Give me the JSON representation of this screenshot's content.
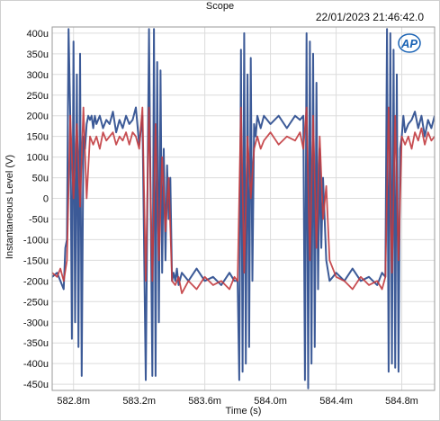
{
  "window": {
    "title": "Scope",
    "timestamp": "22/01/2023 21:46:42.0",
    "logo_text": "AP"
  },
  "colors": {
    "series_blue": "#3c5a97",
    "series_red": "#c23b3f",
    "grid": "#dcdcdc",
    "axis": "#9a9a9a",
    "logo": "#1a63b5"
  },
  "chart_data": {
    "type": "line",
    "title": "Scope",
    "xlabel": "Time (s)",
    "ylabel": "Instantaneous Level (V)",
    "xlim": [
      582.67,
      585.0
    ],
    "ylim": [
      -0.000465,
      0.000415
    ],
    "x_ticks": [
      582.8,
      583.2,
      583.6,
      584.0,
      584.4,
      584.8
    ],
    "x_tick_labels": [
      "582.8m",
      "583.2m",
      "583.6m",
      "584.0m",
      "584.4m",
      "584.8m"
    ],
    "y_ticks": [
      0.0004,
      0.00035,
      0.0003,
      0.00025,
      0.0002,
      0.00015,
      0.0001,
      5e-05,
      0,
      -5e-05,
      -0.0001,
      -0.00015,
      -0.0002,
      -0.00025,
      -0.0003,
      -0.00035,
      -0.0004,
      -0.00045
    ],
    "y_tick_labels": [
      "400u",
      "350u",
      "300u",
      "250u",
      "200u",
      "150u",
      "100u",
      "50u",
      "0",
      "-50u",
      "-100u",
      "-150u",
      "-200u",
      "-250u",
      "-300u",
      "-350u",
      "-400u",
      "-450u"
    ],
    "grid": true,
    "legend": "none",
    "series": [
      {
        "color": "#3c5a97",
        "x": [
          582.67,
          582.7,
          582.72,
          582.74,
          582.75,
          582.76,
          582.77,
          582.78,
          582.79,
          582.8,
          582.81,
          582.82,
          582.83,
          582.84,
          582.85,
          582.86,
          582.87,
          582.88,
          582.89,
          582.9,
          582.91,
          582.92,
          582.93,
          582.94,
          582.96,
          582.98,
          583.0,
          583.02,
          583.04,
          583.06,
          583.08,
          583.1,
          583.12,
          583.14,
          583.16,
          583.18,
          583.2,
          583.22,
          583.24,
          583.26,
          583.28,
          583.29,
          583.3,
          583.31,
          583.32,
          583.33,
          583.34,
          583.35,
          583.36,
          583.37,
          583.38,
          583.39,
          583.4,
          583.41,
          583.42,
          583.43,
          583.44,
          583.46,
          583.5,
          583.55,
          583.6,
          583.65,
          583.7,
          583.75,
          583.78,
          583.8,
          583.81,
          583.82,
          583.83,
          583.84,
          583.85,
          583.86,
          583.87,
          583.88,
          583.89,
          583.9,
          583.91,
          583.92,
          583.94,
          583.96,
          584.0,
          584.05,
          584.1,
          584.15,
          584.18,
          584.2,
          584.21,
          584.22,
          584.23,
          584.24,
          584.25,
          584.26,
          584.27,
          584.28,
          584.29,
          584.3,
          584.31,
          584.32,
          584.34,
          584.36,
          584.4,
          584.45,
          584.5,
          584.55,
          584.6,
          584.65,
          584.68,
          584.7,
          584.71,
          584.72,
          584.73,
          584.74,
          584.75,
          584.76,
          584.77,
          584.78,
          584.79,
          584.8,
          584.81,
          584.82,
          584.84,
          584.86,
          584.88,
          584.9,
          584.92,
          584.94,
          584.96,
          584.98,
          585.0
        ],
        "values": [
          -0.00019,
          -0.00018,
          -0.0002,
          -0.00022,
          -0.00012,
          -0.0001,
          0.00041,
          0.0002,
          -0.00034,
          0.00038,
          -0.0003,
          0.0003,
          -0.00036,
          0.00035,
          -0.00043,
          0.00015,
          0.00012,
          0.00018,
          0.0002,
          0.00019,
          0.0002,
          0.00017,
          0.0002,
          0.00018,
          0.0002,
          0.00017,
          0.00019,
          0.00018,
          0.00021,
          0.00016,
          0.00019,
          0.00017,
          0.0002,
          0.00018,
          0.00019,
          0.00022,
          0.00013,
          0.0002,
          -0.00044,
          0.00041,
          -0.00043,
          0.00041,
          -0.00043,
          0.00033,
          -0.0003,
          0.00031,
          -0.00018,
          0.00012,
          -0.00015,
          8e-05,
          -5e-05,
          5e-05,
          -0.0002,
          -0.00018,
          -0.0002,
          -0.00017,
          -0.00021,
          -0.00018,
          -0.0002,
          -0.00017,
          -0.0002,
          -0.00019,
          -0.00021,
          -0.00018,
          -0.0002,
          -0.0002,
          -0.00044,
          0.00036,
          -0.00042,
          0.0004,
          -0.0004,
          0.0003,
          -0.00036,
          0.00034,
          -0.0002,
          0.00018,
          0.00015,
          0.0002,
          0.00017,
          0.0002,
          0.00018,
          0.0002,
          0.00017,
          0.0002,
          0.00019,
          0.0002,
          -0.00044,
          0.0004,
          -0.00046,
          0.00038,
          -0.0004,
          0.00035,
          -0.00036,
          0.00028,
          -0.00022,
          0.00012,
          -0.00012,
          5e-05,
          -0.00015,
          -0.0002,
          -0.00018,
          -0.0002,
          -0.00017,
          -0.0002,
          -0.00019,
          -0.00021,
          -0.00018,
          -0.00019,
          0.00041,
          -0.00042,
          0.0004,
          -0.0004,
          0.00036,
          -0.00041,
          0.0003,
          -0.00042,
          0.00012,
          0.00015,
          0.0002,
          0.00016,
          0.00018,
          0.00019,
          0.00021,
          0.00017,
          0.0002,
          0.00015,
          0.00019,
          0.00017,
          0.0002
        ]
      },
      {
        "color": "#c23b3f",
        "x": [
          582.67,
          582.7,
          582.72,
          582.74,
          582.76,
          582.78,
          582.8,
          582.82,
          582.84,
          582.86,
          582.88,
          582.9,
          582.92,
          582.94,
          582.96,
          582.98,
          583.0,
          583.02,
          583.04,
          583.06,
          583.08,
          583.1,
          583.12,
          583.14,
          583.16,
          583.18,
          583.2,
          583.22,
          583.24,
          583.26,
          583.28,
          583.3,
          583.32,
          583.34,
          583.36,
          583.38,
          583.4,
          583.42,
          583.44,
          583.46,
          583.5,
          583.55,
          583.6,
          583.65,
          583.7,
          583.75,
          583.78,
          583.8,
          583.82,
          583.84,
          583.86,
          583.88,
          583.9,
          583.92,
          583.94,
          583.96,
          584.0,
          584.05,
          584.1,
          584.15,
          584.18,
          584.2,
          584.22,
          584.24,
          584.26,
          584.28,
          584.3,
          584.32,
          584.34,
          584.36,
          584.4,
          584.45,
          584.5,
          584.55,
          584.6,
          584.65,
          584.68,
          584.7,
          584.72,
          584.74,
          584.76,
          584.78,
          584.8,
          584.82,
          584.84,
          584.86,
          584.88,
          584.9,
          584.92,
          584.94,
          584.96,
          584.98,
          585.0
        ],
        "values": [
          -0.00018,
          -0.00019,
          -0.00017,
          -0.0002,
          -0.00015,
          0.0002,
          0.0,
          0.00018,
          -2e-05,
          0.00022,
          0.0,
          0.00015,
          0.00013,
          0.00015,
          0.00012,
          0.00016,
          0.00014,
          0.00015,
          0.00016,
          0.00013,
          0.00015,
          0.00014,
          0.00016,
          0.00013,
          0.00016,
          0.00015,
          0.00012,
          0.00022,
          -0.0002,
          0.00022,
          -0.0002,
          0.00018,
          -0.00015,
          0.0001,
          -8e-05,
          5e-05,
          -0.0002,
          -0.00021,
          -0.00019,
          -0.00023,
          -0.0002,
          -0.00022,
          -0.00019,
          -0.00021,
          -0.0002,
          -0.00022,
          -0.00019,
          -0.0002,
          0.00022,
          -0.00018,
          0.00015,
          0.0,
          0.00012,
          0.00015,
          0.00012,
          0.00014,
          0.00016,
          0.00013,
          0.00015,
          0.00014,
          0.00016,
          0.00012,
          0.00022,
          -0.00015,
          0.0002,
          -0.00012,
          0.00015,
          -5e-05,
          3e-05,
          -0.00015,
          -0.00019,
          -0.0002,
          -0.00022,
          -0.00019,
          -0.00021,
          -0.0002,
          -0.00022,
          -0.00019,
          0.00022,
          -0.00018,
          0.0002,
          -0.00015,
          0.00015,
          0.00013,
          0.00015,
          0.00012,
          0.00016,
          0.00014,
          0.00017,
          0.00013,
          0.00016,
          0.00014,
          0.00015
        ]
      }
    ]
  }
}
